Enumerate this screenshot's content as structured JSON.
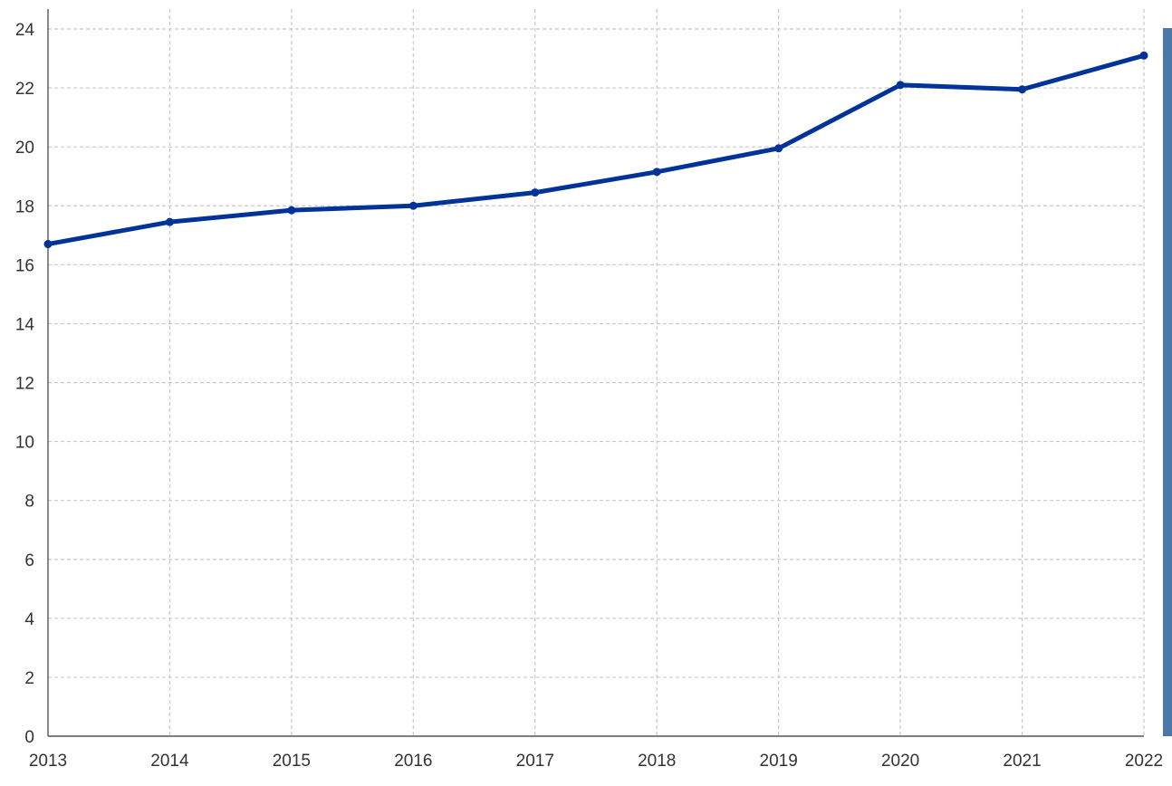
{
  "colors": {
    "series": "#003399",
    "side_bar": "#4a77a8"
  },
  "chart_data": {
    "type": "line",
    "x": [
      "2013",
      "2014",
      "2015",
      "2016",
      "2017",
      "2018",
      "2019",
      "2020",
      "2021",
      "2022"
    ],
    "series": [
      {
        "values": [
          16.7,
          17.45,
          17.85,
          18.0,
          18.45,
          19.15,
          19.95,
          22.1,
          21.95,
          23.1
        ]
      }
    ],
    "title": "",
    "xlabel": "",
    "ylabel": "",
    "ylim": [
      0,
      24
    ],
    "yticks": [
      0,
      2,
      4,
      6,
      8,
      10,
      12,
      14,
      16,
      18,
      20,
      22,
      24
    ],
    "grid": true,
    "legend": "none"
  }
}
